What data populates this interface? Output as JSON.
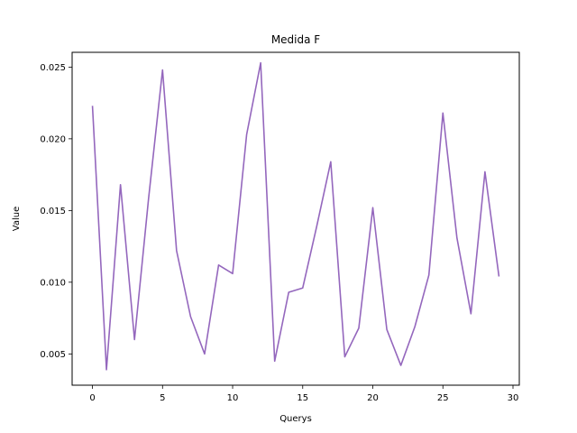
{
  "chart_data": {
    "type": "line",
    "title": "Medida F",
    "xlabel": "Querys",
    "ylabel": "Value",
    "xlim": [
      -1.45,
      30.45
    ],
    "ylim": [
      0.00282,
      0.02603
    ],
    "xticks": [
      0,
      5,
      10,
      15,
      20,
      25,
      30
    ],
    "xtick_labels": [
      "0",
      "5",
      "10",
      "15",
      "20",
      "25",
      "30"
    ],
    "yticks": [
      0.005,
      0.01,
      0.015,
      0.02,
      0.025
    ],
    "ytick_labels": [
      "0.005",
      "0.010",
      "0.015",
      "0.020",
      "0.025"
    ],
    "grid": false,
    "legend": false,
    "series": [
      {
        "color": "#9467bd",
        "x": [
          0,
          1,
          2,
          3,
          4,
          5,
          6,
          7,
          8,
          9,
          10,
          11,
          12,
          13,
          14,
          15,
          16,
          17,
          18,
          19,
          20,
          21,
          22,
          23,
          24,
          25,
          26,
          27,
          28,
          29
        ],
        "values": [
          0.0223,
          0.0039,
          0.0168,
          0.006,
          0.0158,
          0.0248,
          0.0122,
          0.0076,
          0.005,
          0.0112,
          0.0106,
          0.0203,
          0.0253,
          0.0045,
          0.0093,
          0.0096,
          0.0139,
          0.0184,
          0.0048,
          0.0068,
          0.0152,
          0.0067,
          0.0042,
          0.0069,
          0.0105,
          0.0218,
          0.0131,
          0.0078,
          0.0177,
          0.0104
        ]
      }
    ]
  }
}
